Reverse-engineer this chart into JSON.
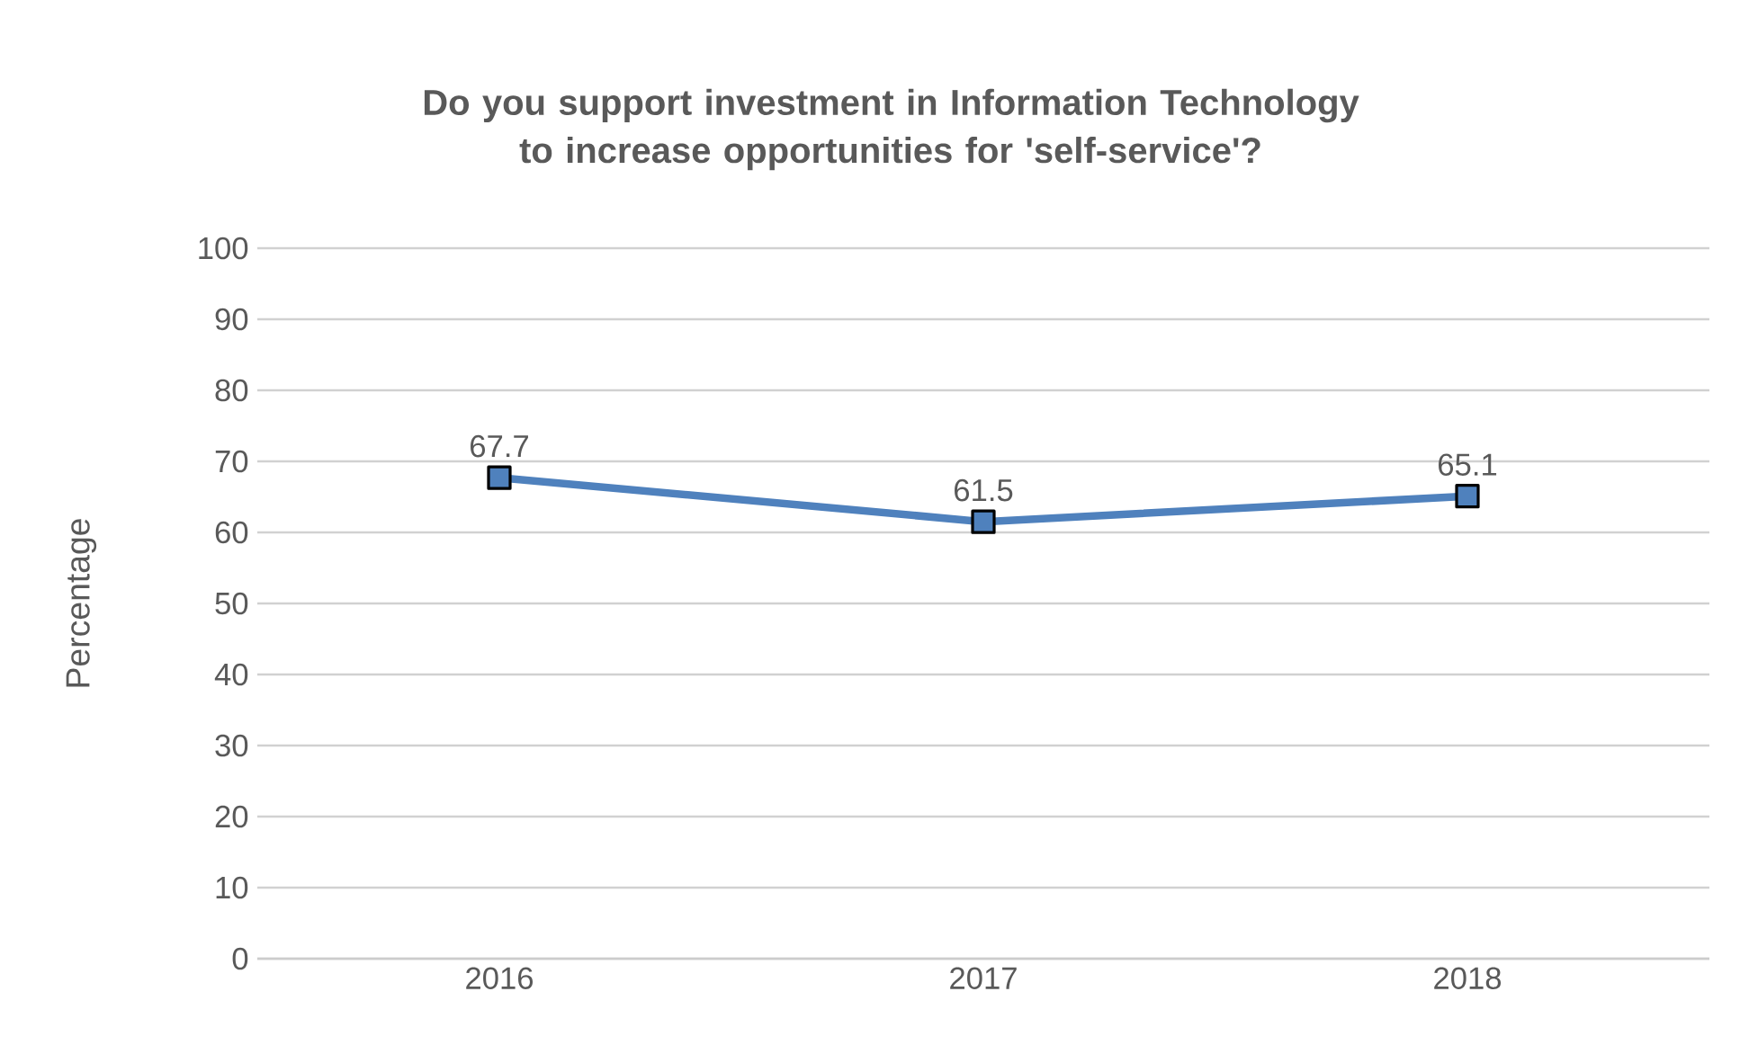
{
  "chart_data": {
    "type": "line",
    "title": "Do you support investment in Information Technology to increase opportunities for 'self-service'?",
    "ylabel": "Percentage",
    "categories": [
      "2016",
      "2017",
      "2018"
    ],
    "values": [
      67.7,
      61.5,
      65.1
    ],
    "color": "#4f81bd",
    "ylim": [
      0,
      100
    ],
    "yticks": [
      0,
      10,
      20,
      30,
      40,
      50,
      60,
      70,
      80,
      90,
      100
    ],
    "grid": "y",
    "marker": "square",
    "line_style": "solid",
    "data_labels": true
  }
}
